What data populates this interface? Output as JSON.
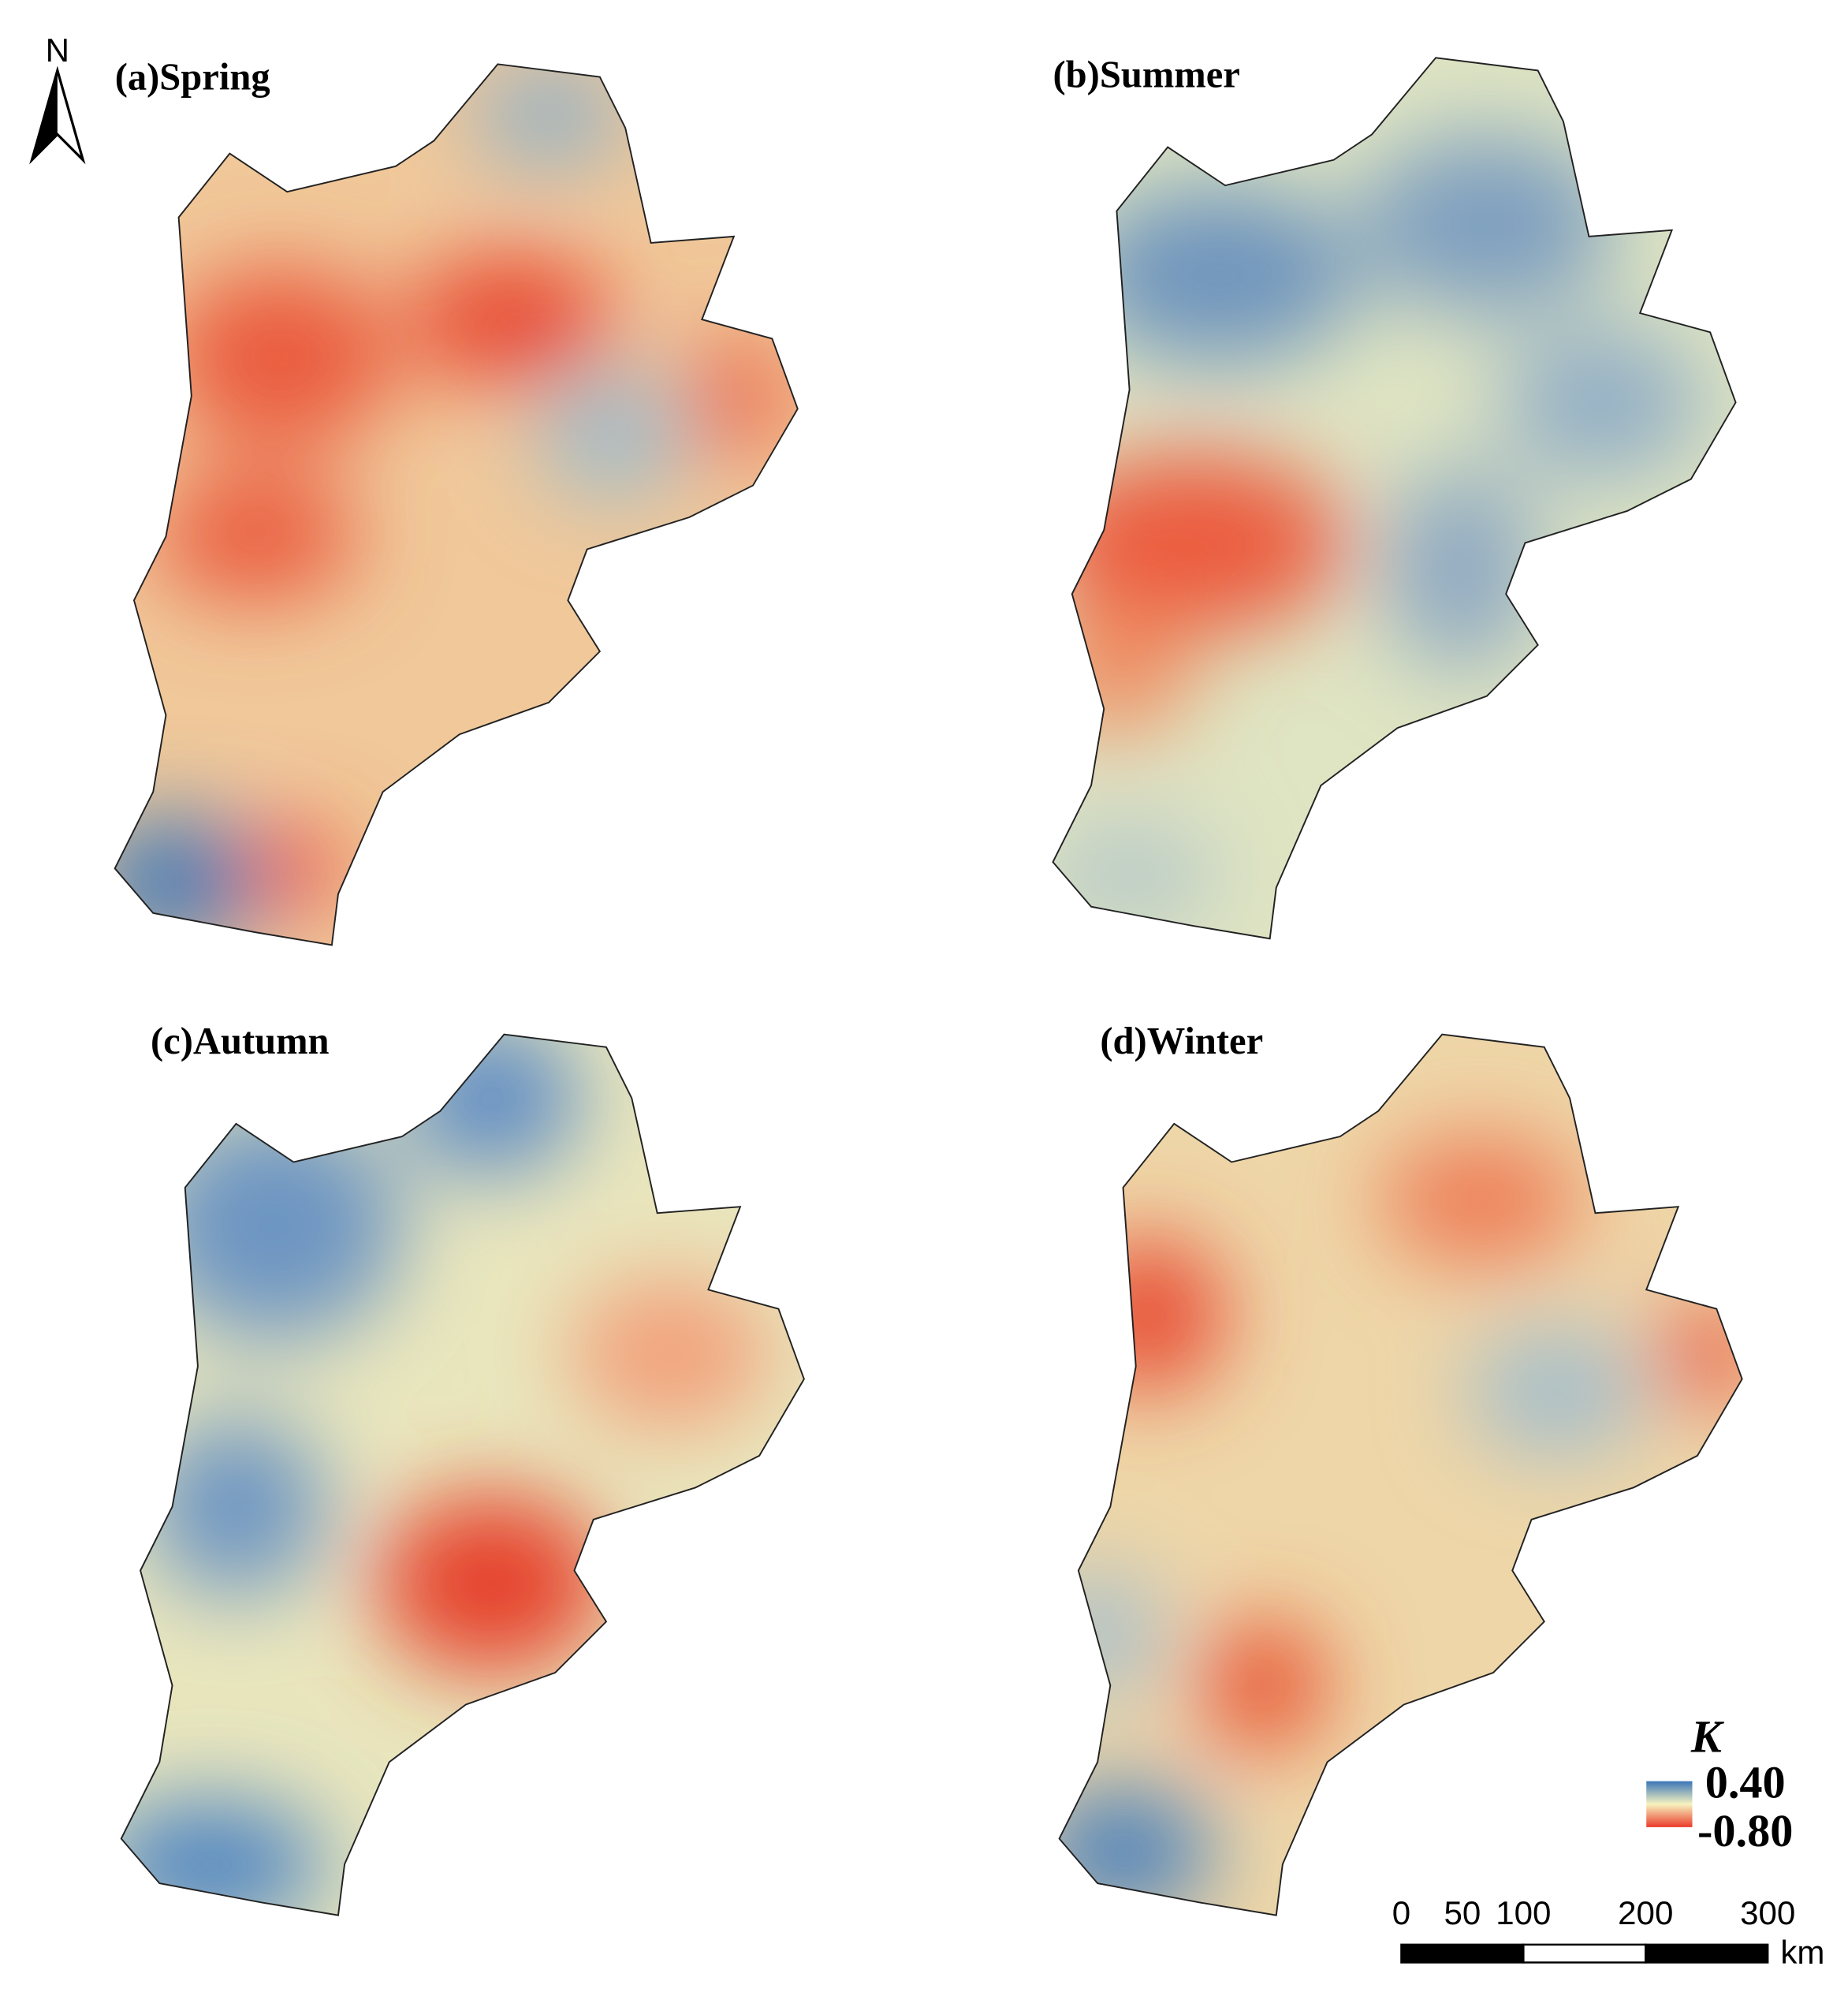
{
  "north": "N",
  "panels": [
    {
      "title": "(a)Spring"
    },
    {
      "title": "(b)Summer"
    },
    {
      "title": "(c)Autumn"
    },
    {
      "title": "(d)Winter"
    }
  ],
  "legend": {
    "title": "K",
    "max": "0.40",
    "min": "-0.80"
  },
  "scale_bar": {
    "ticks": [
      0,
      50,
      100,
      200,
      300
    ],
    "unit": "km"
  }
}
